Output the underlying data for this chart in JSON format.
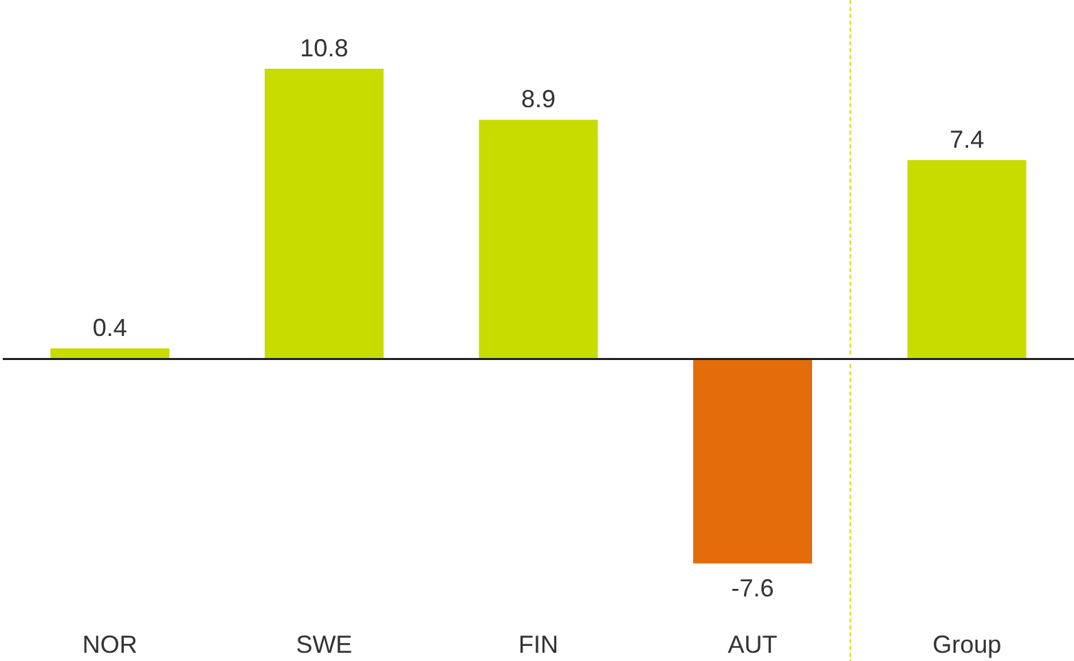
{
  "chart_data": {
    "type": "bar",
    "categories": [
      "NOR",
      "SWE",
      "FIN",
      "AUT",
      "Group"
    ],
    "values": [
      0.4,
      10.8,
      8.9,
      -7.6,
      7.4
    ],
    "colors": [
      "#c8dc00",
      "#c8dc00",
      "#c8dc00",
      "#e46c0a",
      "#c8dc00"
    ],
    "data_labels": true
  }
}
